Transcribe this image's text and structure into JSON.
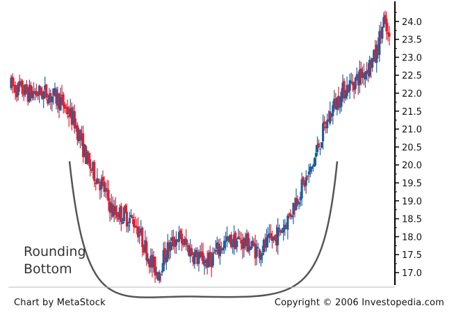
{
  "chart_data": {
    "type": "candlestick",
    "title": "",
    "xlabel": "",
    "ylabel": "",
    "ylim": [
      16.6,
      24.3
    ],
    "yticks": [
      17.0,
      17.5,
      18.0,
      18.5,
      19.0,
      19.5,
      20.0,
      20.5,
      21.0,
      21.5,
      22.0,
      22.5,
      23.0,
      23.5,
      24.0
    ],
    "ytick_labels": [
      "17.0",
      "17.5",
      "18.0",
      "18.5",
      "19.0",
      "19.5",
      "20.0",
      "20.5",
      "21.0",
      "21.5",
      "22.0",
      "22.5",
      "23.0",
      "23.5",
      "24.0"
    ],
    "axis_position": "right",
    "grid": false,
    "colors": {
      "up": "#1f5f9e",
      "down": "#e0202e",
      "curve": "#555555",
      "axis": "#000000"
    },
    "price_path": [
      [
        0,
        22.2
      ],
      [
        12,
        22.0
      ],
      [
        25,
        22.0
      ],
      [
        35,
        21.8
      ],
      [
        45,
        21.2
      ],
      [
        55,
        20.0
      ],
      [
        65,
        19.4
      ],
      [
        72,
        18.7
      ],
      [
        80,
        18.6
      ],
      [
        88,
        18.4
      ],
      [
        95,
        17.7
      ],
      [
        100,
        17.2
      ],
      [
        104,
        17.0
      ],
      [
        110,
        17.6
      ],
      [
        118,
        18.0
      ],
      [
        125,
        17.7
      ],
      [
        132,
        17.4
      ],
      [
        140,
        17.3
      ],
      [
        150,
        17.8
      ],
      [
        160,
        17.9
      ],
      [
        168,
        17.8
      ],
      [
        175,
        17.6
      ],
      [
        182,
        17.8
      ],
      [
        190,
        18.1
      ],
      [
        196,
        18.5
      ],
      [
        205,
        19.3
      ],
      [
        212,
        19.8
      ],
      [
        220,
        20.8
      ],
      [
        228,
        21.6
      ],
      [
        236,
        22.1
      ],
      [
        245,
        22.4
      ],
      [
        250,
        22.6
      ],
      [
        258,
        23.0
      ],
      [
        264,
        24.0
      ],
      [
        268,
        23.4
      ]
    ],
    "bar_count": 269,
    "annotation": {
      "type": "arc",
      "label": [
        "Rounding",
        "Bottom"
      ],
      "low_x_bar": 134,
      "low_y": 16.6,
      "end_left_y": 20.1,
      "end_right_y": 20.1
    }
  },
  "footer": {
    "left": "Chart by MetaStock",
    "right": "Copyright © 2006 Investopedia.com"
  }
}
